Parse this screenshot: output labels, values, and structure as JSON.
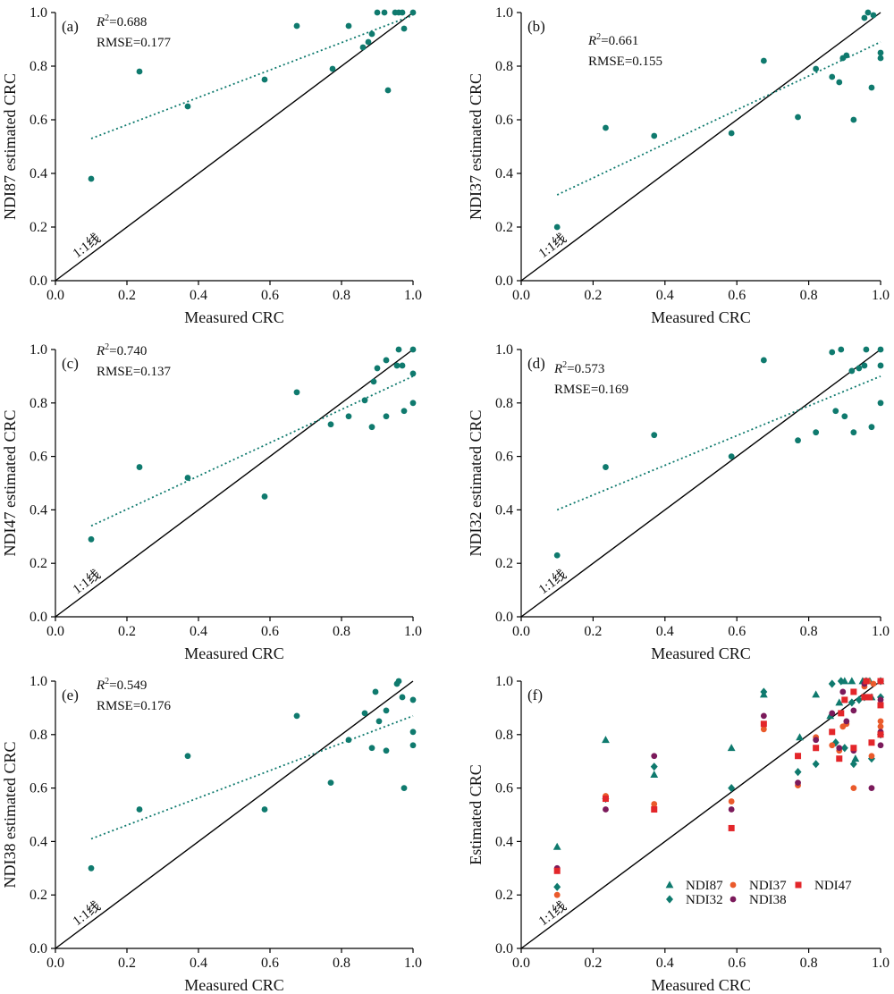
{
  "colors": {
    "teal": "#0f7a6e",
    "orange": "#ea5a2b",
    "red": "#e3262a",
    "purple": "#7b1a5b",
    "axis": "#000000"
  },
  "chart_data": [
    {
      "panel": "(a)",
      "type": "scatter",
      "xlabel": "Measured CRC",
      "ylabel": "NDI87 estimated CRC",
      "xlim": [
        0,
        1
      ],
      "ylim": [
        0,
        1
      ],
      "xticks": [
        "0.0",
        "0.2",
        "0.4",
        "0.6",
        "0.8",
        "1.0"
      ],
      "yticks": [
        "0.0",
        "0.2",
        "0.4",
        "0.6",
        "0.8",
        "1.0"
      ],
      "stats": {
        "r2": "=0.688",
        "rmse": "RMSE=0.177"
      },
      "identity_label": "1:1线",
      "fit": {
        "x": [
          0.1,
          1.0
        ],
        "y": [
          0.53,
          0.99
        ]
      },
      "points": {
        "x": [
          0.1,
          0.235,
          0.37,
          0.585,
          0.675,
          0.775,
          0.82,
          0.86,
          0.875,
          0.885,
          0.9,
          0.92,
          0.93,
          0.95,
          0.96,
          0.97,
          0.975,
          1.0
        ],
        "y": [
          0.38,
          0.78,
          0.65,
          0.75,
          0.95,
          0.79,
          0.95,
          0.87,
          0.89,
          0.92,
          1.0,
          1.0,
          0.71,
          1.0,
          1.0,
          1.0,
          0.94,
          1.0
        ]
      }
    },
    {
      "panel": "(b)",
      "type": "scatter",
      "xlabel": "Measured CRC",
      "ylabel": "NDI37 estimated CRC",
      "xlim": [
        0,
        1
      ],
      "ylim": [
        0,
        1
      ],
      "xticks": [
        "0.0",
        "0.2",
        "0.4",
        "0.6",
        "0.8",
        "1.0"
      ],
      "yticks": [
        "0.0",
        "0.2",
        "0.4",
        "0.6",
        "0.8",
        "1.0"
      ],
      "stats": {
        "r2": "=0.661",
        "rmse": "RMSE=0.155"
      },
      "identity_label": "1:1线",
      "fit": {
        "x": [
          0.1,
          1.0
        ],
        "y": [
          0.32,
          0.89
        ]
      },
      "points": {
        "x": [
          0.1,
          0.235,
          0.37,
          0.585,
          0.675,
          0.77,
          0.82,
          0.865,
          0.885,
          0.895,
          0.905,
          0.925,
          0.955,
          0.965,
          0.975,
          0.98,
          1.0,
          1.0
        ],
        "y": [
          0.2,
          0.57,
          0.54,
          0.55,
          0.82,
          0.61,
          0.79,
          0.76,
          0.74,
          0.83,
          0.84,
          0.6,
          0.98,
          1.0,
          0.72,
          0.99,
          0.85,
          0.83
        ]
      }
    },
    {
      "panel": "(c)",
      "type": "scatter",
      "xlabel": "Measured CRC",
      "ylabel": "NDI47 estimated CRC",
      "xlim": [
        0,
        1
      ],
      "ylim": [
        0,
        1
      ],
      "xticks": [
        "0.0",
        "0.2",
        "0.4",
        "0.6",
        "0.8",
        "1.0"
      ],
      "yticks": [
        "0.0",
        "0.2",
        "0.4",
        "0.6",
        "0.8",
        "1.0"
      ],
      "stats": {
        "r2": "=0.740",
        "rmse": "RMSE=0.137"
      },
      "identity_label": "1:1线",
      "fit": {
        "x": [
          0.1,
          1.0
        ],
        "y": [
          0.34,
          0.9
        ]
      },
      "points": {
        "x": [
          0.1,
          0.235,
          0.37,
          0.585,
          0.675,
          0.77,
          0.82,
          0.865,
          0.885,
          0.89,
          0.9,
          0.925,
          0.925,
          0.955,
          0.96,
          0.97,
          0.975,
          1.0,
          1.0,
          1.0
        ],
        "y": [
          0.29,
          0.56,
          0.52,
          0.45,
          0.84,
          0.72,
          0.75,
          0.81,
          0.71,
          0.88,
          0.93,
          0.96,
          0.75,
          0.94,
          1.0,
          0.94,
          0.77,
          1.0,
          0.8,
          0.91
        ]
      }
    },
    {
      "panel": "(d)",
      "type": "scatter",
      "xlabel": "Measured CRC",
      "ylabel": "NDI32 estimated CRC",
      "xlim": [
        0,
        1
      ],
      "ylim": [
        0,
        1
      ],
      "xticks": [
        "0.0",
        "0.2",
        "0.4",
        "0.6",
        "0.8",
        "1.0"
      ],
      "yticks": [
        "0.0",
        "0.2",
        "0.4",
        "0.6",
        "0.8",
        "1.0"
      ],
      "stats": {
        "r2": "=0.573",
        "rmse": "RMSE=0.169"
      },
      "identity_label": "1:1线",
      "fit": {
        "x": [
          0.1,
          1.0
        ],
        "y": [
          0.4,
          0.9
        ]
      },
      "points": {
        "x": [
          0.1,
          0.235,
          0.37,
          0.585,
          0.675,
          0.77,
          0.82,
          0.865,
          0.875,
          0.89,
          0.9,
          0.92,
          0.925,
          0.94,
          0.955,
          0.96,
          0.975,
          1.0,
          1.0,
          1.0
        ],
        "y": [
          0.23,
          0.56,
          0.68,
          0.6,
          0.96,
          0.66,
          0.69,
          0.99,
          0.77,
          1.0,
          0.75,
          0.92,
          0.69,
          0.93,
          0.94,
          1.0,
          0.71,
          1.0,
          0.94,
          0.8
        ]
      }
    },
    {
      "panel": "(e)",
      "type": "scatter",
      "xlabel": "Measured CRC",
      "ylabel": "NDI38 estimated CRC",
      "xlim": [
        0,
        1
      ],
      "ylim": [
        0,
        1
      ],
      "xticks": [
        "0.0",
        "0.2",
        "0.4",
        "0.6",
        "0.8",
        "1.0"
      ],
      "yticks": [
        "0.0",
        "0.2",
        "0.4",
        "0.6",
        "0.8",
        "1.0"
      ],
      "stats": {
        "r2": "=0.549",
        "rmse": "RMSE=0.176"
      },
      "identity_label": "1:1线",
      "fit": {
        "x": [
          0.1,
          1.0
        ],
        "y": [
          0.41,
          0.87
        ]
      },
      "points": {
        "x": [
          0.1,
          0.235,
          0.37,
          0.585,
          0.675,
          0.77,
          0.82,
          0.865,
          0.885,
          0.895,
          0.905,
          0.925,
          0.925,
          0.955,
          0.96,
          0.97,
          0.975,
          1.0,
          1.0,
          1.0
        ],
        "y": [
          0.3,
          0.52,
          0.72,
          0.52,
          0.87,
          0.62,
          0.78,
          0.88,
          0.75,
          0.96,
          0.85,
          0.89,
          0.74,
          0.99,
          1.0,
          0.94,
          0.6,
          0.93,
          0.81,
          0.76
        ]
      }
    },
    {
      "panel": "(f)",
      "type": "scatter",
      "xlabel": "Measured CRC",
      "ylabel": "Estimated CRC",
      "xlim": [
        0,
        1
      ],
      "ylim": [
        0,
        1
      ],
      "xticks": [
        "0.0",
        "0.2",
        "0.4",
        "0.6",
        "0.8",
        "1.0"
      ],
      "yticks": [
        "0.0",
        "0.2",
        "0.4",
        "0.6",
        "0.8",
        "1.0"
      ],
      "identity_label": "1:1线",
      "legend_position": "bottom-right",
      "series": [
        {
          "name": "NDI87",
          "marker": "triangle",
          "color": "#0f7a6e",
          "x": [
            0.1,
            0.235,
            0.37,
            0.585,
            0.675,
            0.775,
            0.82,
            0.86,
            0.885,
            0.9,
            0.92,
            0.93,
            0.95,
            0.97,
            0.975,
            1.0
          ],
          "y": [
            0.38,
            0.78,
            0.65,
            0.75,
            0.95,
            0.79,
            0.95,
            0.87,
            0.92,
            1.0,
            1.0,
            0.71,
            1.0,
            1.0,
            0.94,
            1.0
          ]
        },
        {
          "name": "NDI32",
          "marker": "diamond",
          "color": "#0f7a6e",
          "x": [
            0.1,
            0.235,
            0.37,
            0.585,
            0.675,
            0.77,
            0.82,
            0.865,
            0.875,
            0.89,
            0.9,
            0.92,
            0.925,
            0.94,
            0.955,
            0.96,
            0.975,
            1.0,
            1.0,
            1.0
          ],
          "y": [
            0.23,
            0.56,
            0.68,
            0.6,
            0.96,
            0.66,
            0.69,
            0.99,
            0.77,
            1.0,
            0.75,
            0.92,
            0.69,
            0.93,
            0.94,
            1.0,
            0.71,
            1.0,
            0.94,
            0.8
          ]
        },
        {
          "name": "NDI37",
          "marker": "circle",
          "color": "#ea5a2b",
          "x": [
            0.1,
            0.235,
            0.37,
            0.585,
            0.675,
            0.77,
            0.82,
            0.865,
            0.885,
            0.895,
            0.905,
            0.925,
            0.955,
            0.965,
            0.975,
            0.98,
            1.0,
            1.0
          ],
          "y": [
            0.2,
            0.57,
            0.54,
            0.55,
            0.82,
            0.61,
            0.79,
            0.76,
            0.74,
            0.83,
            0.84,
            0.6,
            0.98,
            1.0,
            0.72,
            0.99,
            0.85,
            0.83
          ]
        },
        {
          "name": "NDI38",
          "marker": "circle",
          "color": "#7b1a5b",
          "x": [
            0.1,
            0.235,
            0.37,
            0.585,
            0.675,
            0.77,
            0.82,
            0.865,
            0.885,
            0.895,
            0.905,
            0.925,
            0.925,
            0.955,
            0.96,
            0.97,
            0.975,
            1.0,
            1.0,
            1.0
          ],
          "y": [
            0.3,
            0.52,
            0.72,
            0.52,
            0.87,
            0.62,
            0.78,
            0.88,
            0.75,
            0.96,
            0.85,
            0.89,
            0.74,
            0.99,
            1.0,
            0.94,
            0.6,
            0.93,
            0.81,
            0.76
          ]
        },
        {
          "name": "NDI47",
          "marker": "square",
          "color": "#e3262a",
          "x": [
            0.1,
            0.235,
            0.37,
            0.585,
            0.675,
            0.77,
            0.82,
            0.865,
            0.885,
            0.89,
            0.9,
            0.925,
            0.925,
            0.955,
            0.96,
            0.97,
            0.975,
            1.0,
            1.0,
            1.0
          ],
          "y": [
            0.29,
            0.56,
            0.52,
            0.45,
            0.84,
            0.72,
            0.75,
            0.81,
            0.71,
            0.88,
            0.93,
            0.96,
            0.75,
            0.94,
            1.0,
            0.94,
            0.77,
            1.0,
            0.8,
            0.91
          ]
        }
      ]
    }
  ]
}
